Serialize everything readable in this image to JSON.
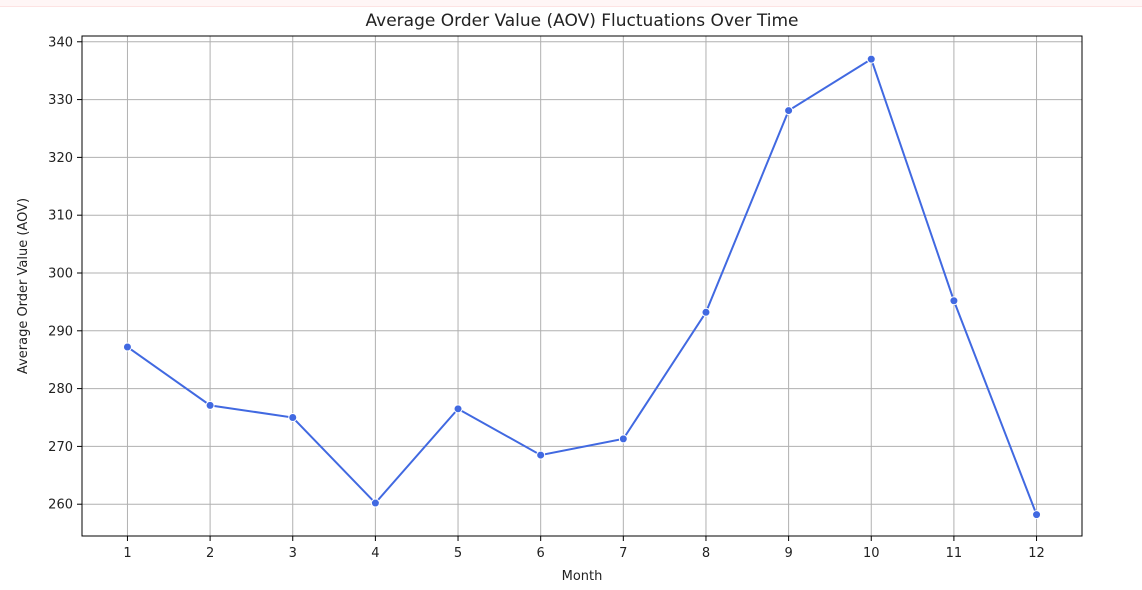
{
  "chart_data": {
    "type": "line",
    "title": "Average Order Value (AOV) Fluctuations Over Time",
    "xlabel": "Month",
    "ylabel": "Average Order Value (AOV)",
    "x": [
      1,
      2,
      3,
      4,
      5,
      6,
      7,
      8,
      9,
      10,
      11,
      12
    ],
    "x_tick_labels": [
      "1",
      "2",
      "3",
      "4",
      "5",
      "6",
      "7",
      "8",
      "9",
      "10",
      "11",
      "12"
    ],
    "y_ticks": [
      260,
      270,
      280,
      290,
      300,
      310,
      320,
      330,
      340
    ],
    "y_tick_labels": [
      "260",
      "270",
      "280",
      "290",
      "300",
      "310",
      "320",
      "330",
      "340"
    ],
    "series": [
      {
        "values": [
          287.2,
          277.1,
          275.0,
          260.2,
          276.5,
          268.5,
          271.3,
          293.2,
          328.1,
          337.0,
          295.2,
          258.2
        ]
      }
    ],
    "xlim": [
      0.45,
      12.55
    ],
    "ylim": [
      254.5,
      341.0
    ],
    "grid": true,
    "line_color": "#4169E1",
    "marker": "circle"
  }
}
